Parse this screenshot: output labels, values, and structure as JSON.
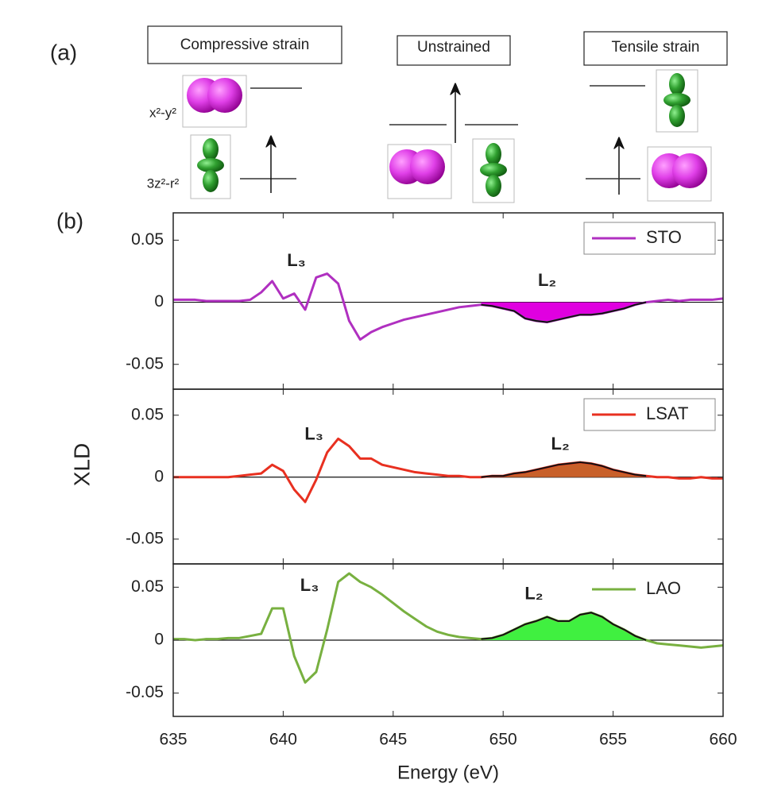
{
  "figure": {
    "panel_a_label": "(a)",
    "panel_b_label": "(b)",
    "boxes": [
      "Compressive strain",
      "Unstrained",
      "Tensile strain"
    ],
    "orbital_labels": [
      "x²-y²",
      "3z²-r²"
    ]
  },
  "chart_data": [
    {
      "type": "line",
      "x": [
        635,
        635.5,
        636,
        636.5,
        637,
        637.5,
        638,
        638.5,
        639,
        639.5,
        640,
        640.5,
        641,
        641.5,
        642,
        642.5,
        643,
        643.5,
        644,
        644.5,
        645,
        645.5,
        646,
        646.5,
        647,
        647.5,
        648,
        648.5,
        649,
        649.5,
        650,
        650.5,
        651,
        651.5,
        652,
        652.5,
        653,
        653.5,
        654,
        654.5,
        655,
        655.5,
        656,
        656.5,
        657,
        657.5,
        658,
        658.5,
        659,
        659.5,
        660
      ],
      "series": [
        {
          "name": "STO",
          "color": "#b030c0",
          "fill_color": "#e000e0",
          "values": [
            0.002,
            0.002,
            0.002,
            0.001,
            0.001,
            0.001,
            0.001,
            0.002,
            0.008,
            0.017,
            0.003,
            0.007,
            -0.006,
            0.02,
            0.023,
            0.015,
            -0.015,
            -0.03,
            -0.024,
            -0.02,
            -0.017,
            -0.014,
            -0.012,
            -0.01,
            -0.008,
            -0.006,
            -0.004,
            -0.003,
            -0.002,
            -0.003,
            -0.005,
            -0.007,
            -0.013,
            -0.015,
            -0.016,
            -0.014,
            -0.012,
            -0.01,
            -0.01,
            -0.009,
            -0.007,
            -0.005,
            -0.002,
            0,
            0.001,
            0.002,
            0.001,
            0.002,
            0.002,
            0.002,
            0.003
          ]
        }
      ],
      "shade_xlim": [
        649,
        656.5
      ],
      "annotations": [
        {
          "text": "L₃",
          "x": 640.6,
          "y": 0.033
        },
        {
          "text": "L₂",
          "x": 652,
          "y": 0.017
        }
      ],
      "xlim": [
        635,
        660
      ],
      "ylim": [
        -0.07,
        0.072
      ],
      "yticks": [
        0.05,
        0,
        -0.05
      ],
      "legend": "upper right",
      "legend_frame": true
    },
    {
      "type": "line",
      "x": [
        635,
        635.5,
        636,
        636.5,
        637,
        637.5,
        638,
        638.5,
        639,
        639.5,
        640,
        640.5,
        641,
        641.5,
        642,
        642.5,
        643,
        643.5,
        644,
        644.5,
        645,
        645.5,
        646,
        646.5,
        647,
        647.5,
        648,
        648.5,
        649,
        649.5,
        650,
        650.5,
        651,
        651.5,
        652,
        652.5,
        653,
        653.5,
        654,
        654.5,
        655,
        655.5,
        656,
        656.5,
        657,
        657.5,
        658,
        658.5,
        659,
        659.5,
        660
      ],
      "series": [
        {
          "name": "LSAT",
          "color": "#e83020",
          "fill_color": "#c8602a",
          "values": [
            0,
            0,
            0,
            0,
            0,
            0,
            0.001,
            0.002,
            0.003,
            0.01,
            0.005,
            -0.01,
            -0.02,
            -0.002,
            0.02,
            0.031,
            0.025,
            0.015,
            0.015,
            0.01,
            0.008,
            0.006,
            0.004,
            0.003,
            0.002,
            0.001,
            0.001,
            0,
            0,
            0.001,
            0.001,
            0.003,
            0.004,
            0.006,
            0.008,
            0.01,
            0.011,
            0.012,
            0.011,
            0.009,
            0.006,
            0.004,
            0.002,
            0.001,
            0,
            0,
            -0.001,
            -0.001,
            0,
            -0.001,
            -0.001
          ]
        }
      ],
      "shade_xlim": [
        649,
        656.5
      ],
      "annotations": [
        {
          "text": "L₃",
          "x": 641.4,
          "y": 0.034
        },
        {
          "text": "L₂",
          "x": 652.6,
          "y": 0.026
        }
      ],
      "ylabel": "XLD",
      "xlim": [
        635,
        660
      ],
      "ylim": [
        -0.07,
        0.071
      ],
      "yticks": [
        0.05,
        0,
        -0.05
      ],
      "legend": "upper right",
      "legend_frame": true
    },
    {
      "type": "line",
      "x": [
        635,
        635.5,
        636,
        636.5,
        637,
        637.5,
        638,
        638.5,
        639,
        639.5,
        640,
        640.5,
        641,
        641.5,
        642,
        642.5,
        643,
        643.5,
        644,
        644.5,
        645,
        645.5,
        646,
        646.5,
        647,
        647.5,
        648,
        648.5,
        649,
        649.5,
        650,
        650.5,
        651,
        651.5,
        652,
        652.5,
        653,
        653.5,
        654,
        654.5,
        655,
        655.5,
        656,
        656.5,
        657,
        657.5,
        658,
        658.5,
        659,
        659.5,
        660
      ],
      "series": [
        {
          "name": "LAO",
          "color": "#78b040",
          "fill_color": "#40f040",
          "values": [
            0.001,
            0.001,
            0,
            0.001,
            0.001,
            0.002,
            0.002,
            0.004,
            0.006,
            0.03,
            0.03,
            -0.015,
            -0.04,
            -0.03,
            0.01,
            0.055,
            0.063,
            0.055,
            0.05,
            0.043,
            0.035,
            0.027,
            0.02,
            0.013,
            0.008,
            0.005,
            0.003,
            0.002,
            0.001,
            0.002,
            0.005,
            0.01,
            0.015,
            0.018,
            0.022,
            0.018,
            0.018,
            0.024,
            0.026,
            0.022,
            0.015,
            0.01,
            0.004,
            0,
            -0.003,
            -0.004,
            -0.005,
            -0.006,
            -0.007,
            -0.006,
            -0.005
          ]
        }
      ],
      "shade_xlim": [
        649,
        656.5
      ],
      "annotations": [
        {
          "text": "L₃",
          "x": 641.2,
          "y": 0.051
        },
        {
          "text": "L₂",
          "x": 651.4,
          "y": 0.043
        }
      ],
      "xlabel": "Energy (eV)",
      "xlim": [
        635,
        660
      ],
      "ylim": [
        -0.072,
        0.072
      ],
      "yticks": [
        0.05,
        0,
        -0.05
      ],
      "xticks": [
        635,
        640,
        645,
        650,
        655,
        660
      ],
      "legend": "upper right",
      "legend_frame": false
    }
  ]
}
